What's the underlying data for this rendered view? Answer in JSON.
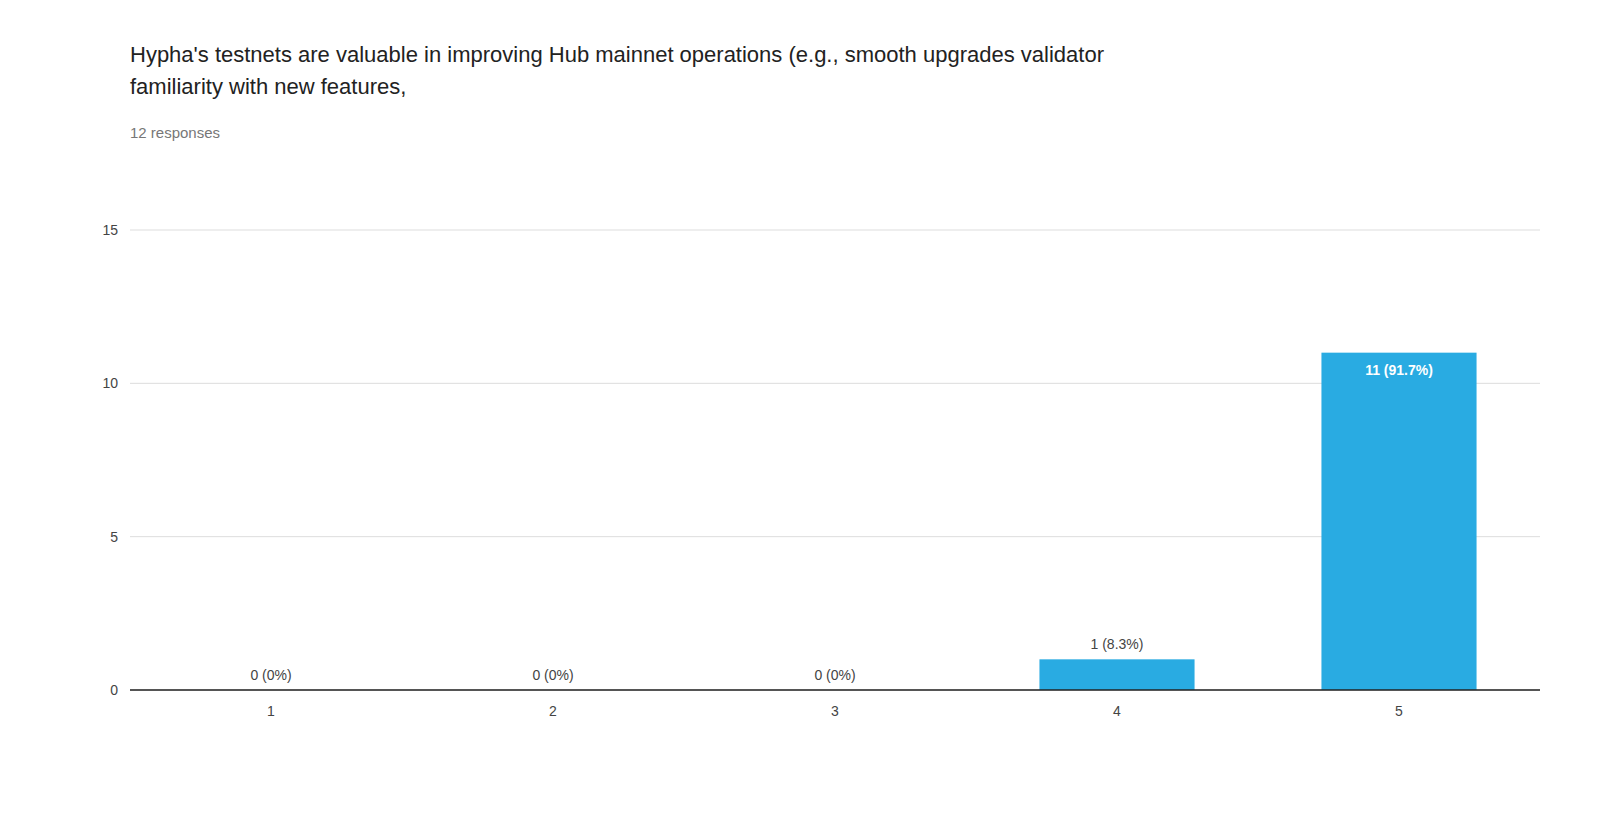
{
  "chart_data": {
    "type": "bar",
    "title": "Hypha's testnets are valuable in improving Hub mainnet operations (e.g., smooth upgrades validator\nfamiliarity with new features,",
    "subtitle": "12 responses",
    "categories": [
      1,
      2,
      3,
      4,
      5
    ],
    "values": [
      0,
      0,
      0,
      1,
      11
    ],
    "value_labels": [
      "0 (0%)",
      "0 (0%)",
      "0 (0%)",
      "1 (8.3%)",
      "11 (91.7%)"
    ],
    "data_labels": true,
    "color": "#29ABE2",
    "ylim": [
      0,
      15
    ],
    "yticks": [
      0,
      5,
      10,
      15
    ],
    "grid": true
  }
}
